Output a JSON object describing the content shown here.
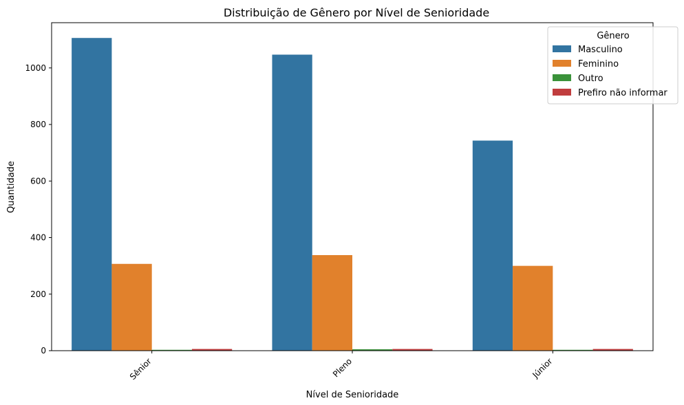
{
  "chart_data": {
    "type": "bar",
    "title": "Distribuição de Gênero por Nível de Senioridade",
    "xlabel": "Nível de Senioridade",
    "ylabel": "Quantidade",
    "categories": [
      "Sênior",
      "Pleno",
      "Júnior"
    ],
    "ylim": [
      0,
      1160
    ],
    "yticks": [
      0,
      200,
      400,
      600,
      800,
      1000
    ],
    "grid": false,
    "legend": {
      "title": "Gênero",
      "placement": "top-right"
    },
    "series": [
      {
        "name": "Masculino",
        "color": "#3274a1",
        "values": [
          1106,
          1047,
          743
        ]
      },
      {
        "name": "Feminino",
        "color": "#e1812c",
        "values": [
          307,
          338,
          300
        ]
      },
      {
        "name": "Outro",
        "color": "#3a923a",
        "values": [
          3,
          5,
          3
        ]
      },
      {
        "name": "Prefiro não informar",
        "color": "#c03d3e",
        "values": [
          6,
          6,
          6
        ]
      }
    ]
  }
}
